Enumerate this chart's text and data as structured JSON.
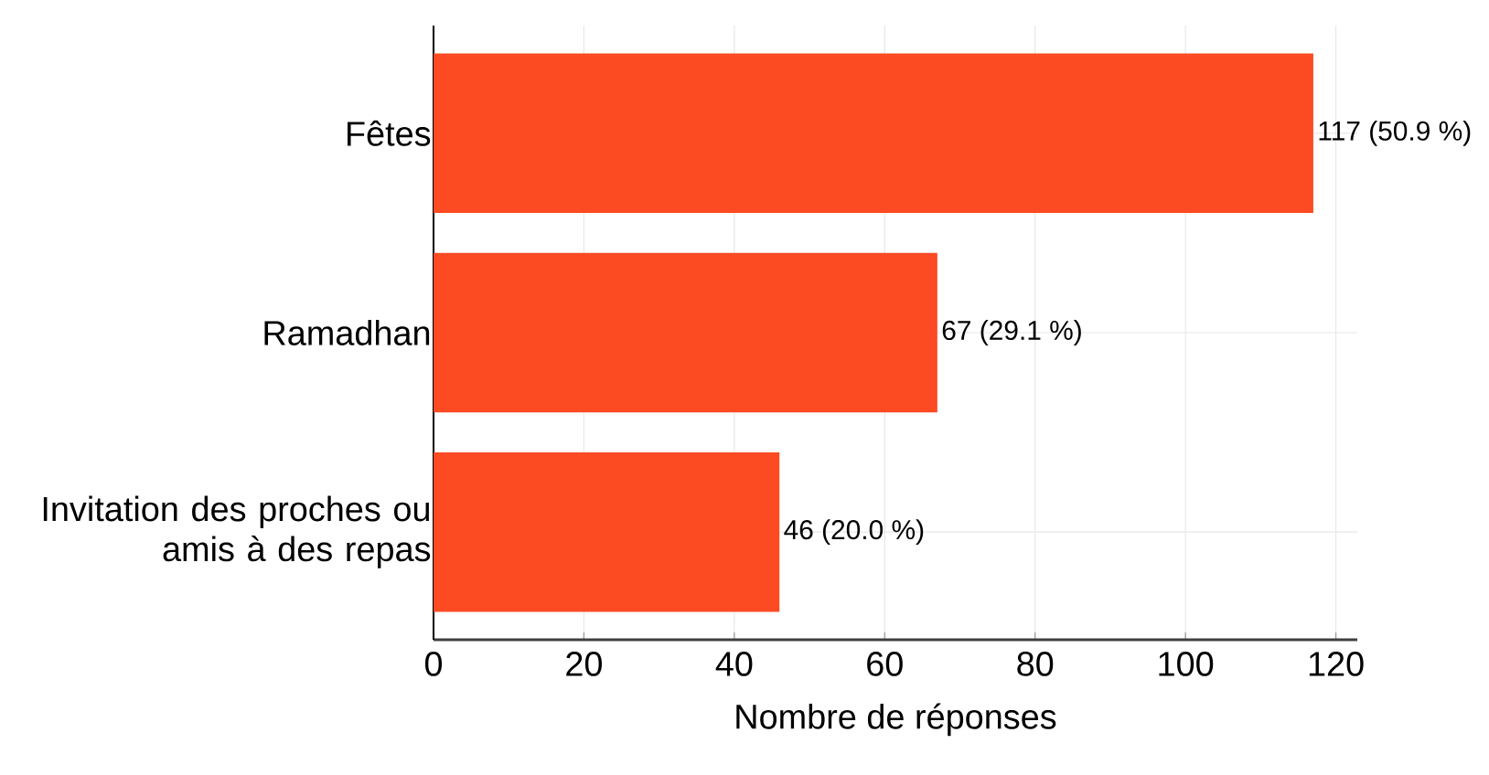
{
  "chart_data": {
    "type": "bar",
    "orientation": "horizontal",
    "categories": [
      "Fêtes",
      "Ramadhan",
      "Invitation des proches ou amis à des repas"
    ],
    "values": [
      117,
      67,
      46
    ],
    "color": "#fc4a22",
    "value_labels": [
      "117 (50.9 %)",
      "67 (29.1 %)",
      "46 (20.0 %)"
    ],
    "xlabel": "Nombre de réponses",
    "xlim": [
      0,
      122.85
    ],
    "xticks": [
      0,
      20,
      40,
      60,
      80,
      100,
      120
    ],
    "grid": true
  }
}
